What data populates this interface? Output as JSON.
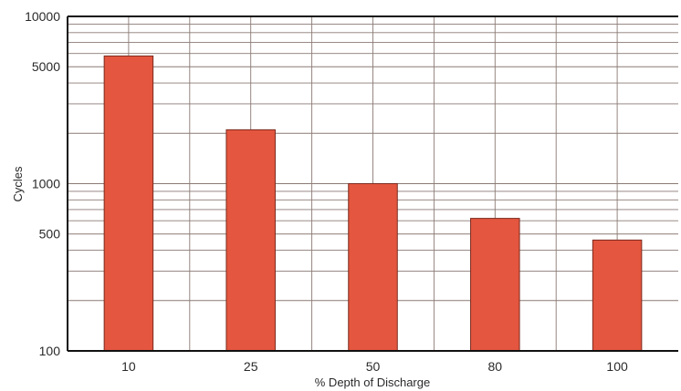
{
  "chart_data": {
    "type": "bar",
    "title": "",
    "xlabel": "% Depth of Discharge",
    "ylabel": "Cycles",
    "y_scale": "log",
    "ylim": [
      100,
      10000
    ],
    "yticks": [
      100,
      500,
      1000,
      5000,
      10000
    ],
    "grid": true,
    "categories": [
      "10",
      "25",
      "50",
      "80",
      "100"
    ],
    "values": [
      5800,
      2100,
      1000,
      620,
      460
    ],
    "colors": {
      "bar": "#e4563f",
      "bar_edge": "#7a2a1e",
      "grid": "#8a7a74",
      "axis": "#111111"
    }
  }
}
